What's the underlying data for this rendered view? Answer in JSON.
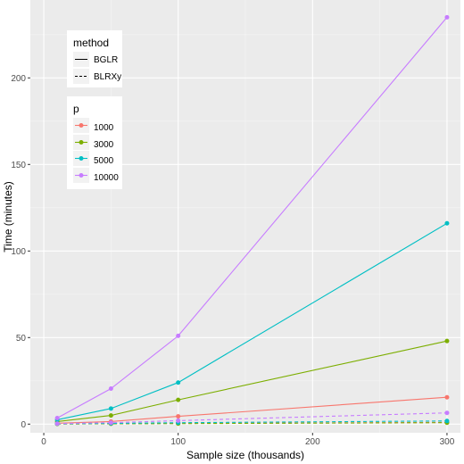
{
  "chart_data": {
    "type": "line",
    "xlabel": "Sample size (thousands)",
    "ylabel": "Time (minutes)",
    "xlim": [
      -10,
      310
    ],
    "ylim": [
      -5,
      245
    ],
    "x_ticks": [
      0,
      100,
      200,
      300
    ],
    "y_ticks": [
      0,
      50,
      100,
      150,
      200
    ],
    "grid": true,
    "legend_position": "top-left",
    "legend_method": {
      "title": "method",
      "entries": [
        {
          "label": "BGLR",
          "linestyle": "solid"
        },
        {
          "label": "BLRXy",
          "linestyle": "dashed"
        }
      ]
    },
    "legend_p": {
      "title": "p",
      "entries": [
        {
          "label": "1000",
          "color": "#F8766D"
        },
        {
          "label": "3000",
          "color": "#7CAE00"
        },
        {
          "label": "5000",
          "color": "#00BFC4"
        },
        {
          "label": "10000",
          "color": "#C77CFF"
        }
      ]
    },
    "series": [
      {
        "p": "1000",
        "method": "BGLR",
        "color": "#F8766D",
        "linestyle": "solid",
        "x": [
          10,
          50,
          100,
          300
        ],
        "y": [
          0.5,
          1.5,
          4.5,
          15.5
        ]
      },
      {
        "p": "3000",
        "method": "BGLR",
        "color": "#7CAE00",
        "linestyle": "solid",
        "x": [
          10,
          50,
          100,
          300
        ],
        "y": [
          1.5,
          5,
          14,
          48
        ]
      },
      {
        "p": "5000",
        "method": "BGLR",
        "color": "#00BFC4",
        "linestyle": "solid",
        "x": [
          10,
          50,
          100,
          300
        ],
        "y": [
          2.5,
          9,
          24,
          116
        ]
      },
      {
        "p": "10000",
        "method": "BGLR",
        "color": "#C77CFF",
        "linestyle": "solid",
        "x": [
          10,
          50,
          100,
          300
        ],
        "y": [
          3.5,
          20.5,
          51,
          235
        ]
      },
      {
        "p": "1000",
        "method": "BLRXy",
        "color": "#F8766D",
        "linestyle": "dashed",
        "x": [
          10,
          50,
          100,
          300
        ],
        "y": [
          0.1,
          0.2,
          0.4,
          1.0
        ]
      },
      {
        "p": "3000",
        "method": "BLRXy",
        "color": "#7CAE00",
        "linestyle": "dashed",
        "x": [
          10,
          50,
          100,
          300
        ],
        "y": [
          0.1,
          0.2,
          0.3,
          0.8
        ]
      },
      {
        "p": "5000",
        "method": "BLRXy",
        "color": "#00BFC4",
        "linestyle": "dashed",
        "x": [
          10,
          50,
          100,
          300
        ],
        "y": [
          0.2,
          0.4,
          0.8,
          1.8
        ]
      },
      {
        "p": "10000",
        "method": "BLRXy",
        "color": "#C77CFF",
        "linestyle": "dashed",
        "x": [
          10,
          50,
          100,
          300
        ],
        "y": [
          0.3,
          0.8,
          2.0,
          6.5
        ]
      }
    ]
  }
}
